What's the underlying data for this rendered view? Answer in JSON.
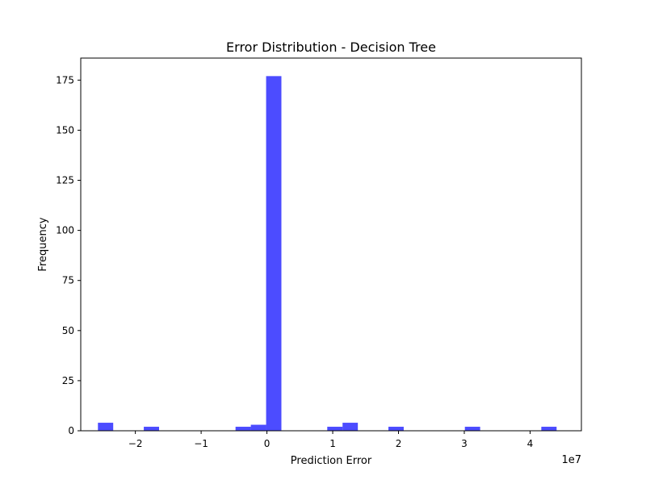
{
  "chart_data": {
    "type": "bar",
    "title": "Error Distribution - Decision Tree",
    "xlabel": "Prediction Error",
    "ylabel": "Frequency",
    "x_offset_label": "1e7",
    "xlim": [
      -2.83,
      4.78
    ],
    "ylim": [
      0,
      186
    ],
    "x_scale_factor": 10000000,
    "bar_width": 0.2324,
    "bar_color": "#0000ff",
    "bar_opacity": 0.7,
    "x_ticks": [
      -2,
      -1,
      0,
      1,
      2,
      3,
      4
    ],
    "x_tick_labels": [
      "−2",
      "−1",
      "0",
      "1",
      "2",
      "3",
      "4"
    ],
    "y_ticks": [
      0,
      25,
      50,
      75,
      100,
      125,
      150,
      175
    ],
    "y_tick_labels": [
      "0",
      "25",
      "50",
      "75",
      "100",
      "125",
      "150",
      "175"
    ],
    "bins": [
      {
        "start": -2.5689,
        "count": 4
      },
      {
        "start": -1.8717,
        "count": 2
      },
      {
        "start": -0.4773,
        "count": 2
      },
      {
        "start": -0.2449,
        "count": 3
      },
      {
        "start": -0.0125,
        "count": 177
      },
      {
        "start": 0.9171,
        "count": 2
      },
      {
        "start": 1.1495,
        "count": 4
      },
      {
        "start": 1.8467,
        "count": 2
      },
      {
        "start": 3.0087,
        "count": 2
      },
      {
        "start": 4.1707,
        "count": 2
      }
    ]
  }
}
